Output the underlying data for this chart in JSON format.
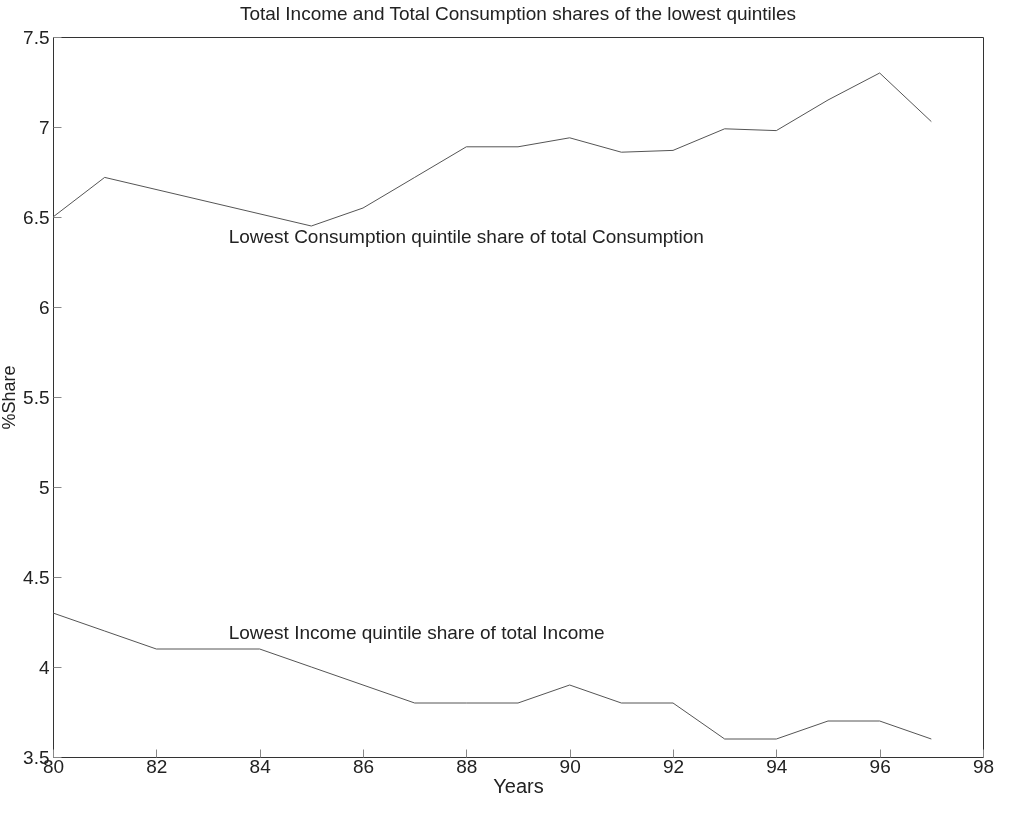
{
  "chart_data": {
    "type": "line",
    "title": "Total Income and Total Consumption shares of the lowest quintiles",
    "xlabel": "Years",
    "ylabel": "%Share",
    "xlim": [
      80,
      98
    ],
    "xticks": [
      80,
      82,
      84,
      86,
      88,
      90,
      92,
      94,
      96,
      98
    ],
    "ylim": [
      3.5,
      7.5
    ],
    "yticks": [
      3.5,
      4,
      4.5,
      5,
      5.5,
      6,
      6.5,
      7,
      7.5
    ],
    "grid": false,
    "legend": false,
    "series": [
      {
        "name": "Lowest Consumption quintile share of total Consumption",
        "color": "#555555",
        "x": [
          80,
          81,
          85,
          86,
          87,
          88,
          89,
          90,
          91,
          92,
          93,
          94,
          95,
          96,
          97
        ],
        "values": [
          6.5,
          6.72,
          6.45,
          6.55,
          6.72,
          6.89,
          6.89,
          6.94,
          6.86,
          6.87,
          6.99,
          6.98,
          7.15,
          7.3,
          7.03
        ]
      },
      {
        "name": "Lowest Income quintile share of total Income",
        "color": "#555555",
        "x": [
          80,
          81,
          82,
          83,
          84,
          85,
          86,
          87,
          88,
          89,
          90,
          91,
          92,
          93,
          94,
          95,
          96,
          97
        ],
        "values": [
          4.3,
          4.2,
          4.1,
          4.1,
          4.1,
          4.0,
          3.9,
          3.8,
          3.8,
          3.8,
          3.9,
          3.8,
          3.8,
          3.6,
          3.6,
          3.7,
          3.7,
          3.6
        ]
      }
    ]
  }
}
